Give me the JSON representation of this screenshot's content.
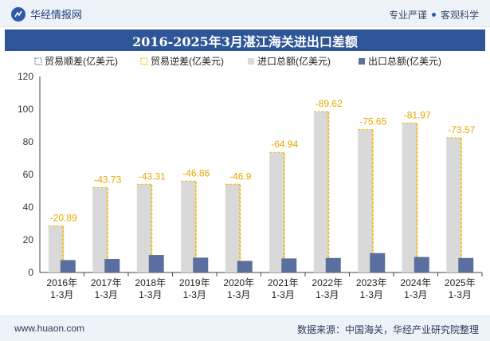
{
  "header": {
    "brand": "华经情报网",
    "slogan_left": "专业严谨",
    "slogan_right": "客观科学"
  },
  "footer": {
    "website": "www.huaon.com",
    "source": "数据来源：中国海关，华经产业研究院整理"
  },
  "colors": {
    "header_bg": "#eef3fa",
    "title_bg": "#2e5597",
    "import_bar": "#d9d9d9",
    "export_bar": "#5b6f9e",
    "surplus_dash": "#f5b800",
    "deficit_label": "#e6a800"
  },
  "chart_data": {
    "type": "bar",
    "title": "2016-2025年3月湛江海关进出口差额",
    "categories": [
      "2016年\n1-3月",
      "2017年\n1-3月",
      "2018年\n1-3月",
      "2019年\n1-3月",
      "2020年\n1-3月",
      "2021年\n1-3月",
      "2022年\n1-3月",
      "2023年\n1-3月",
      "2024年\n1-3月",
      "2025年\n1-3月"
    ],
    "ylim": [
      0,
      120
    ],
    "yticks": [
      0,
      20,
      40,
      60,
      80,
      100,
      120
    ],
    "legend_position": "top",
    "series": [
      {
        "name": "贸易顺差(亿美元)",
        "values": [
          0,
          0,
          0,
          0,
          0,
          0,
          0,
          0,
          0,
          0
        ]
      },
      {
        "name": "贸易逆差(亿美元)",
        "values": [
          -20.89,
          -43.73,
          -43.31,
          -46.86,
          -46.9,
          -64.94,
          -89.62,
          -75.65,
          -81.97,
          -73.57
        ]
      },
      {
        "name": "进口总额(亿美元)",
        "values": [
          28.5,
          52.0,
          54.0,
          56.0,
          54.0,
          73.5,
          98.5,
          87.5,
          91.5,
          82.5
        ]
      },
      {
        "name": "出口总额(亿美元)",
        "values": [
          7.6,
          8.3,
          10.7,
          9.1,
          7.1,
          8.6,
          8.9,
          11.9,
          9.5,
          8.9
        ]
      }
    ],
    "data_labels": [
      "-20.89",
      "-43.73",
      "-43.31",
      "-46.86",
      "-46.9",
      "-64.94",
      "-89.62",
      "-75.65",
      "-81.97",
      "-73.57"
    ]
  }
}
